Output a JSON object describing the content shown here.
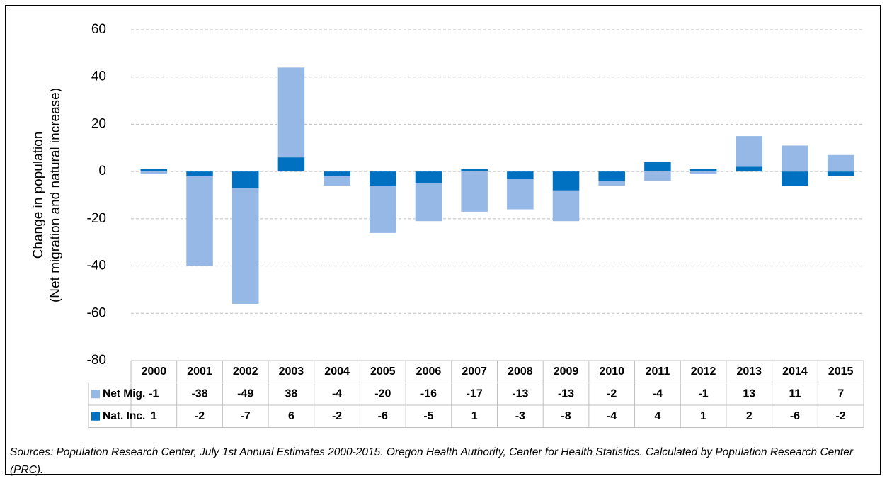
{
  "chart_data": {
    "type": "bar",
    "stacked": true,
    "y_label": [
      "Change in population",
      "(Net migration and natural increase)"
    ],
    "categories": [
      "2000",
      "2001",
      "2002",
      "2003",
      "2004",
      "2005",
      "2006",
      "2007",
      "2008",
      "2009",
      "2010",
      "2011",
      "2012",
      "2013",
      "2014",
      "2015"
    ],
    "series": [
      {
        "name": "Net Mig.",
        "color": "#95b8e6",
        "values": [
          -1,
          -38,
          -49,
          38,
          -4,
          -20,
          -16,
          -17,
          -13,
          -13,
          -2,
          -4,
          -1,
          13,
          11,
          7
        ]
      },
      {
        "name": "Nat. Inc.",
        "color": "#0070c0",
        "values": [
          1,
          -2,
          -7,
          6,
          -2,
          -6,
          -5,
          1,
          -3,
          -8,
          -4,
          4,
          1,
          2,
          -6,
          -2
        ]
      }
    ],
    "ylim": [
      -80,
      60
    ],
    "yticks": [
      -80,
      -60,
      -40,
      -20,
      0,
      20,
      40,
      60
    ],
    "grid": true,
    "source": "Sources: Population Research Center, July 1st Annual Estimates 2000-2015. Oregon Health Authority, Center for Health Statistics. Calculated by Population Research Center (PRC)."
  }
}
